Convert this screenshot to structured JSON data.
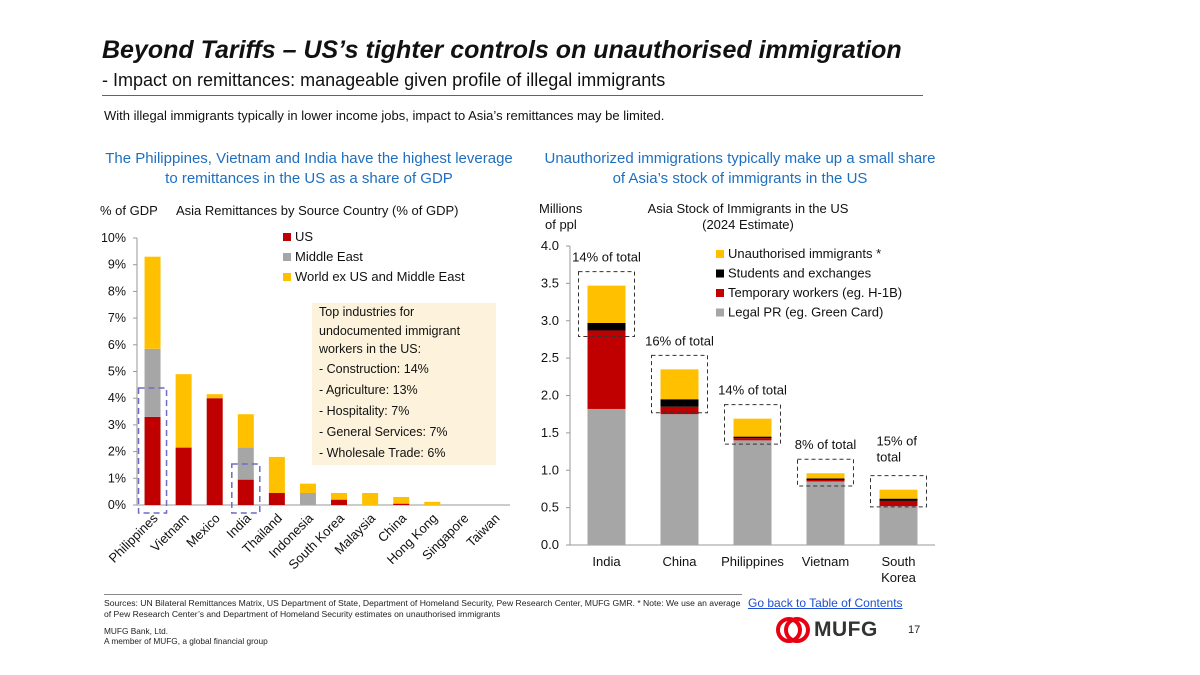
{
  "slide": {
    "title": "Beyond Tariffs – US’s tighter controls on unauthorised immigration",
    "subtitle": "- Impact on remittances: manageable given profile of illegal immigrants",
    "intro": "With illegal immigrants typically in lower income jobs, impact to Asia’s remittances may be limited.",
    "left_heading": "The Philippines, Vietnam and India have the highest leverage to remittances in the US as a share of GDP",
    "right_heading": "Unauthorized immigrations typically make up a small share of Asia’s stock of immigrants in the US",
    "industries_box": {
      "title": "Top industries for undocumented immigrant workers in the US:",
      "items": [
        "-   Construction: 14%",
        "-   Agriculture: 13%",
        "-   Hospitality: 7%",
        "-   General Services: 7%",
        "-   Wholesale Trade: 6%"
      ]
    },
    "sources": "Sources: UN Bilateral Remittances Matrix, US Department of State, Department of Homeland Security, Pew Research Center, MUFG GMR. * Note: We use an average of Pew Research Center’s and Department of Homeland Security estimates on unauthorised immigrants",
    "bank_name": "MUFG Bank, Ltd.",
    "bank_tagline": "A member of MUFG, a global financial group",
    "back_link": "Go back to Table of Contents",
    "logo_text": "MUFG",
    "page_number": "17",
    "colors": {
      "accent_rule": "#e0302a",
      "heading_blue": "#1f6fc0",
      "highlight_dash": "#6c6cc4",
      "logo_red": "#e60012"
    }
  },
  "chart_data": [
    {
      "type": "bar",
      "stacked": true,
      "title": "Asia Remittances by Source Country (% of GDP)",
      "ylabel": "% of GDP",
      "ylim": [
        0,
        10
      ],
      "yticks": [
        "0%",
        "1%",
        "2%",
        "3%",
        "4%",
        "5%",
        "6%",
        "7%",
        "8%",
        "9%",
        "10%"
      ],
      "categories": [
        "Philippines",
        "Vietnam",
        "Mexico",
        "India",
        "Thailand",
        "Indonesia",
        "South Korea",
        "Malaysia",
        "China",
        "Hong Kong",
        "Singapore",
        "Taiwan"
      ],
      "series": [
        {
          "name": "US",
          "color": "#c00000",
          "values": [
            3.3,
            2.15,
            4.0,
            0.95,
            0.45,
            0.0,
            0.2,
            0.0,
            0.05,
            0.0,
            0.0,
            0.0
          ]
        },
        {
          "name": "Middle East",
          "color": "#a6a6a6",
          "values": [
            2.55,
            0.0,
            0.0,
            1.2,
            0.0,
            0.45,
            0.0,
            0.0,
            0.0,
            0.0,
            0.0,
            0.0
          ]
        },
        {
          "name": "World ex US and Middle East",
          "color": "#ffc000",
          "values": [
            3.45,
            2.75,
            0.15,
            1.25,
            1.35,
            0.35,
            0.25,
            0.45,
            0.25,
            0.12,
            0.0,
            0.0
          ]
        }
      ],
      "highlighted": [
        "Philippines",
        "India"
      ],
      "legend": "top-center"
    },
    {
      "type": "bar",
      "stacked": true,
      "title": "Asia Stock of Immigrants in the US (2024 Estimate)",
      "ylabel": "Millions of ppl",
      "ylim": [
        0,
        4.0
      ],
      "yticks": [
        "0.0",
        "0.5",
        "1.0",
        "1.5",
        "2.0",
        "2.5",
        "3.0",
        "3.5",
        "4.0"
      ],
      "categories": [
        "India",
        "China",
        "Philippines",
        "Vietnam",
        "South Korea"
      ],
      "series": [
        {
          "name": "Legal PR (eg. Green Card)",
          "color": "#a6a6a6",
          "values": [
            1.82,
            1.75,
            1.4,
            0.85,
            0.52
          ]
        },
        {
          "name": "Temporary workers (eg. H-1B)",
          "color": "#c00000",
          "values": [
            1.05,
            0.1,
            0.03,
            0.02,
            0.07
          ]
        },
        {
          "name": "Students and exchanges",
          "color": "#000000",
          "values": [
            0.1,
            0.1,
            0.02,
            0.02,
            0.03
          ]
        },
        {
          "name": "Unauthorised immigrants *",
          "color": "#ffc000",
          "values": [
            0.5,
            0.4,
            0.24,
            0.07,
            0.12
          ]
        }
      ],
      "annotations": [
        "14% of total",
        "16% of total",
        "14% of total",
        "8% of total",
        "15% of total"
      ],
      "legend": "top-right"
    }
  ]
}
